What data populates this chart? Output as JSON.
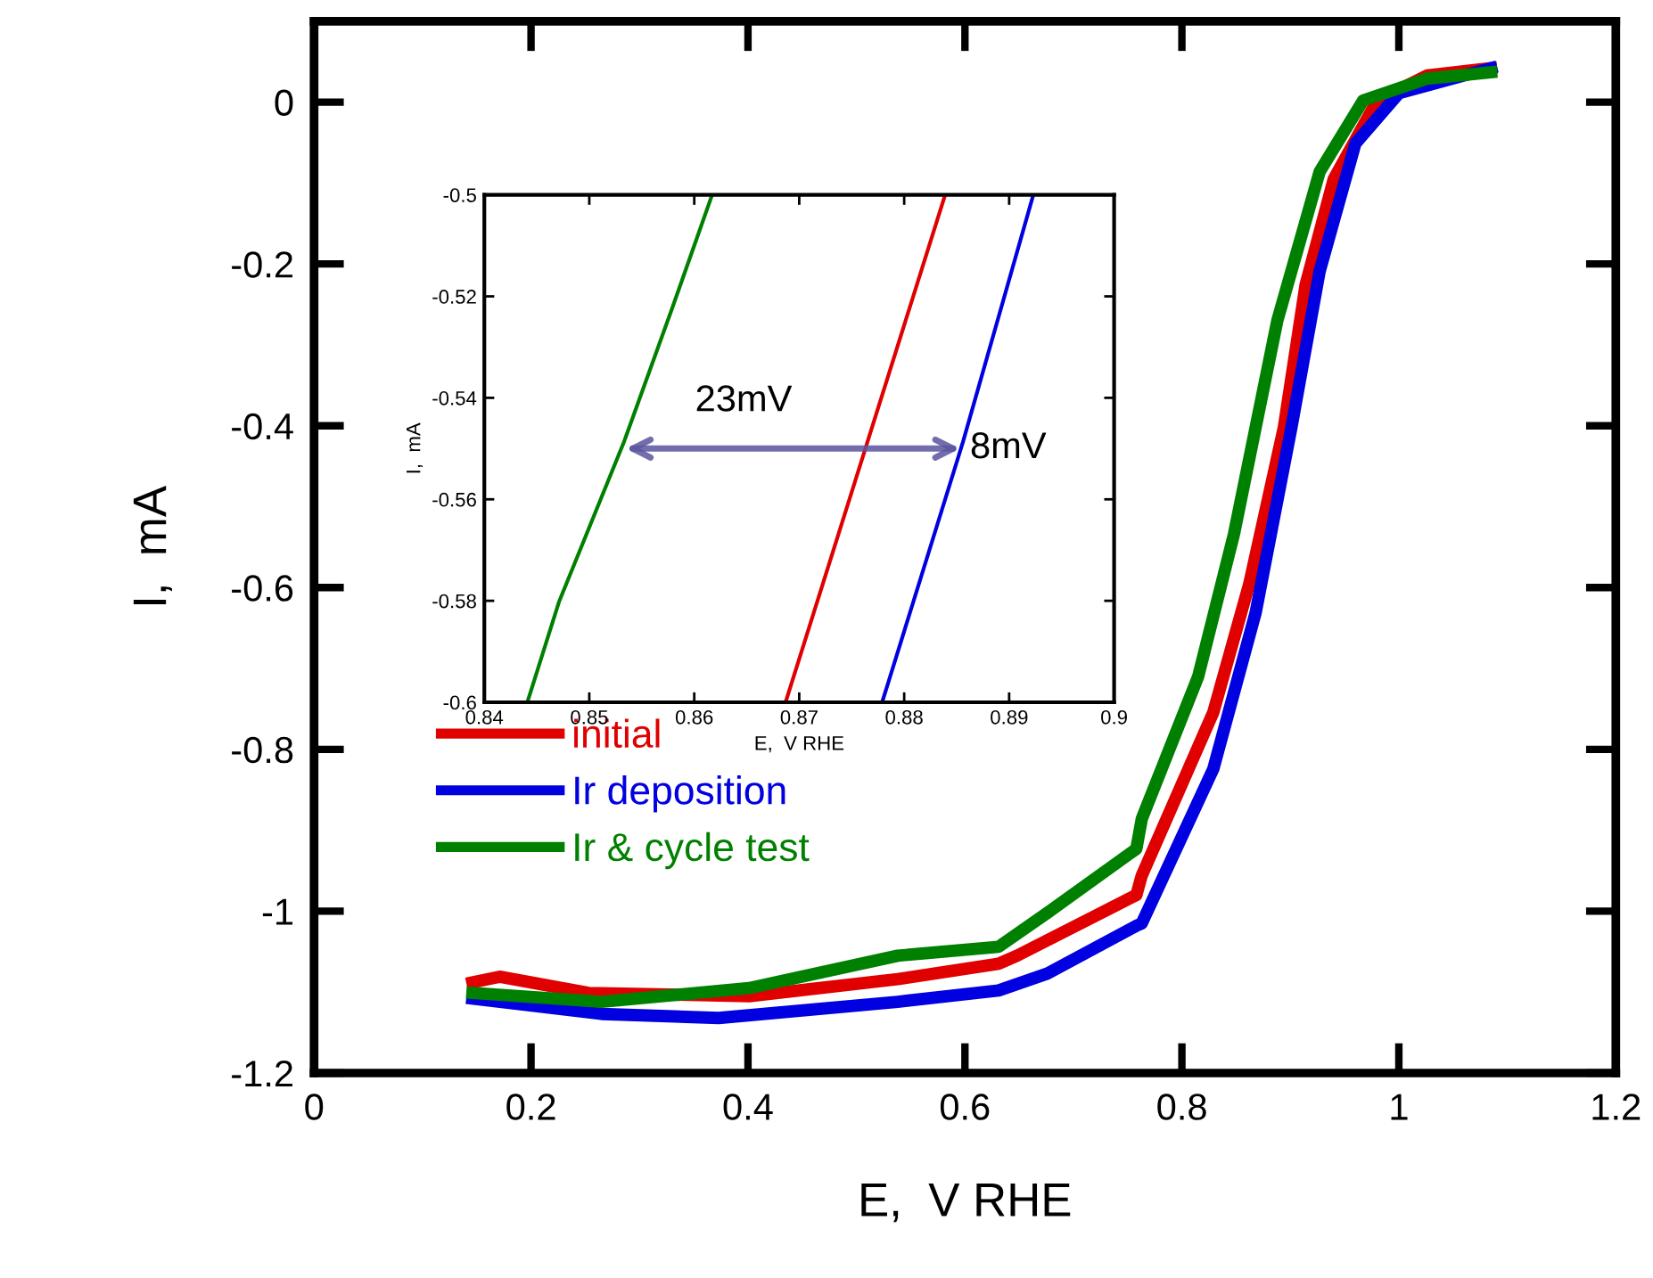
{
  "chart_data": [
    {
      "type": "line",
      "xlabel": "E,  V RHE",
      "ylabel": "I,  mA",
      "xlim": [
        0,
        1.2
      ],
      "ylim": [
        -1.2,
        0.1
      ],
      "xticks": [
        0,
        0.2,
        0.4,
        0.6,
        0.8,
        1,
        1.2
      ],
      "yticks": [
        -1.2,
        -1,
        -0.8,
        -0.6,
        -0.4,
        -0.2,
        0
      ],
      "grid": false,
      "legend": "lower left",
      "series": [
        {
          "name": "initial",
          "color": "#e00000",
          "x": [
            0.146,
            0.171,
            0.253,
            0.401,
            0.538,
            0.631,
            0.648,
            0.758,
            0.763,
            0.829,
            0.862,
            0.894,
            0.914,
            0.94,
            0.98,
            1.026,
            1.085
          ],
          "values": [
            -1.088,
            -1.081,
            -1.101,
            -1.105,
            -1.084,
            -1.065,
            -1.055,
            -0.98,
            -0.956,
            -0.754,
            -0.596,
            -0.402,
            -0.226,
            -0.095,
            0.002,
            0.033,
            0.042
          ]
        },
        {
          "name": "Ir deposition",
          "color": "#0000e0",
          "x": [
            0.146,
            0.265,
            0.373,
            0.538,
            0.631,
            0.676,
            0.758,
            0.763,
            0.829,
            0.868,
            0.901,
            0.927,
            0.96,
            1.0,
            1.085
          ],
          "values": [
            -1.108,
            -1.127,
            -1.132,
            -1.112,
            -1.098,
            -1.077,
            -1.018,
            -1.015,
            -0.824,
            -0.631,
            -0.402,
            -0.209,
            -0.051,
            0.011,
            0.042
          ]
        },
        {
          "name": "Ir & cycle test",
          "color": "#008000",
          "x": [
            0.146,
            0.265,
            0.401,
            0.538,
            0.631,
            0.676,
            0.758,
            0.763,
            0.815,
            0.848,
            0.888,
            0.927,
            0.967,
            1.026,
            1.085
          ],
          "values": [
            -1.101,
            -1.112,
            -1.095,
            -1.055,
            -1.044,
            -1.002,
            -0.923,
            -0.886,
            -0.71,
            -0.534,
            -0.27,
            -0.086,
            0.002,
            0.029,
            0.037
          ]
        }
      ]
    },
    {
      "type": "line",
      "xlabel": "E,  V RHE",
      "ylabel": "I,  mA",
      "xlim": [
        0.84,
        0.9
      ],
      "ylim": [
        -0.6,
        -0.5
      ],
      "xticks": [
        0.84,
        0.85,
        0.86,
        0.87,
        0.88,
        0.89,
        0.9
      ],
      "yticks": [
        -0.6,
        -0.58,
        -0.56,
        -0.54,
        -0.52,
        -0.5
      ],
      "grid": false,
      "annotations": [
        {
          "text": "23mV",
          "x": 0.853,
          "y": -0.55
        },
        {
          "text": "8mV",
          "x": 0.8858,
          "y": -0.55
        }
      ],
      "series": [
        {
          "color": "#008000",
          "x": [
            0.8441,
            0.8471,
            0.8533,
            0.8578,
            0.8617
          ],
          "values": [
            -0.6,
            -0.5803,
            -0.5487,
            -0.5229,
            -0.5
          ]
        },
        {
          "color": "#e00000",
          "x": [
            0.8687,
            0.8765,
            0.8839
          ],
          "values": [
            -0.6,
            -0.5487,
            -0.5
          ]
        },
        {
          "color": "#0000e0",
          "x": [
            0.8779,
            0.8856,
            0.8923
          ],
          "values": [
            -0.6,
            -0.5487,
            -0.5
          ]
        }
      ]
    }
  ]
}
